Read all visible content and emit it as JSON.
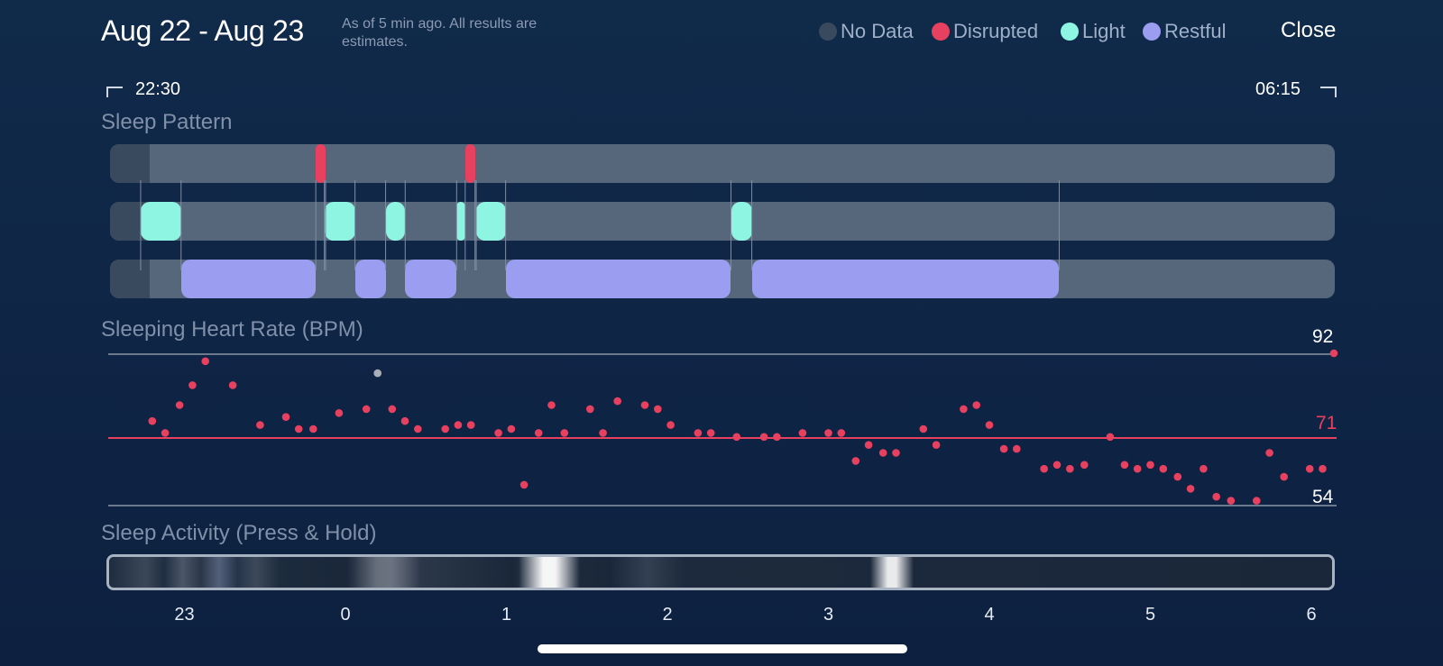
{
  "header": {
    "title": "Aug 22 - Aug 23",
    "subtitle": "As of 5 min ago. All results are estimates.",
    "close_label": "Close"
  },
  "legend": [
    {
      "label": "No Data",
      "color": "#3a4a5e"
    },
    {
      "label": "Disrupted",
      "color": "#e8405f"
    },
    {
      "label": "Light",
      "color": "#8ff5e3"
    },
    {
      "label": "Restful",
      "color": "#9a9df0"
    }
  ],
  "range": {
    "start": "22:30",
    "end": "06:15"
  },
  "sleep_pattern": {
    "title": "Sleep Pattern",
    "disrupted": [
      [
        0.168,
        0.176
      ],
      [
        0.29,
        0.298
      ]
    ],
    "light": [
      [
        0.025,
        0.058
      ],
      [
        0.175,
        0.2
      ],
      [
        0.225,
        0.241
      ],
      [
        0.283,
        0.29
      ],
      [
        0.299,
        0.323
      ],
      [
        0.507,
        0.524
      ]
    ],
    "restful": [
      [
        0.058,
        0.168
      ],
      [
        0.2,
        0.225
      ],
      [
        0.241,
        0.283
      ],
      [
        0.323,
        0.507
      ],
      [
        0.524,
        0.775
      ]
    ]
  },
  "heart_rate": {
    "title": "Sleeping Heart Rate (BPM)",
    "max_label": "92",
    "avg_label": "71",
    "min_label": "54",
    "max": 92,
    "avg": 71,
    "min": 54
  },
  "activity": {
    "title": "Sleep Activity (Press & Hold)"
  },
  "chart_data": {
    "type": "scatter",
    "title": "Sleeping Heart Rate (BPM)",
    "xlabel": "",
    "ylabel": "",
    "x_ticks": [
      "23",
      "0",
      "1",
      "2",
      "3",
      "4",
      "5",
      "6"
    ],
    "xlim": [
      -1.5,
      6.15
    ],
    "ylim": [
      54,
      92
    ],
    "reference_lines": {
      "max": 92,
      "avg": 71,
      "min": 54
    },
    "series": [
      {
        "color": "#e8405f",
        "points": [
          [
            -1.2,
            75
          ],
          [
            -1.12,
            72
          ],
          [
            -1.03,
            79
          ],
          [
            -0.95,
            84
          ],
          [
            -0.87,
            90
          ],
          [
            -0.7,
            84
          ],
          [
            -0.53,
            74
          ],
          [
            -0.37,
            76
          ],
          [
            -0.29,
            73
          ],
          [
            -0.2,
            73
          ],
          [
            -0.04,
            77
          ],
          [
            0.13,
            78
          ],
          [
            0.29,
            78
          ],
          [
            0.37,
            75
          ],
          [
            0.45,
            73
          ],
          [
            0.62,
            73
          ],
          [
            0.7,
            74
          ],
          [
            0.78,
            74
          ],
          [
            0.95,
            72
          ],
          [
            1.03,
            73
          ],
          [
            1.11,
            59
          ],
          [
            1.2,
            72
          ],
          [
            1.28,
            79
          ],
          [
            1.36,
            72
          ],
          [
            1.52,
            78
          ],
          [
            1.6,
            72
          ],
          [
            1.69,
            80
          ],
          [
            1.86,
            79
          ],
          [
            1.94,
            78
          ],
          [
            2.02,
            74
          ],
          [
            2.19,
            72
          ],
          [
            2.27,
            72
          ],
          [
            2.43,
            71
          ],
          [
            2.6,
            71
          ],
          [
            2.68,
            71
          ],
          [
            2.84,
            72
          ],
          [
            3.0,
            72
          ],
          [
            3.08,
            72
          ],
          [
            3.17,
            65
          ],
          [
            3.25,
            69
          ],
          [
            3.34,
            67
          ],
          [
            3.42,
            67
          ],
          [
            3.59,
            73
          ],
          [
            3.67,
            69
          ],
          [
            3.84,
            78
          ],
          [
            3.92,
            79
          ],
          [
            4.0,
            74
          ],
          [
            4.09,
            68
          ],
          [
            4.17,
            68
          ],
          [
            4.34,
            63
          ],
          [
            4.42,
            64
          ],
          [
            4.5,
            63
          ],
          [
            4.59,
            64
          ],
          [
            4.75,
            71
          ],
          [
            4.84,
            64
          ],
          [
            4.92,
            63
          ],
          [
            5.0,
            64
          ],
          [
            5.08,
            63
          ],
          [
            5.17,
            61
          ],
          [
            5.25,
            58
          ],
          [
            5.33,
            63
          ],
          [
            5.41,
            56
          ],
          [
            5.5,
            55
          ],
          [
            5.66,
            55
          ],
          [
            5.74,
            67
          ],
          [
            5.83,
            61
          ],
          [
            5.99,
            63
          ],
          [
            6.07,
            63
          ],
          [
            6.14,
            92
          ]
        ]
      },
      {
        "color": "#a9aeb8",
        "points": [
          [
            0.2,
            87
          ]
        ]
      }
    ]
  }
}
